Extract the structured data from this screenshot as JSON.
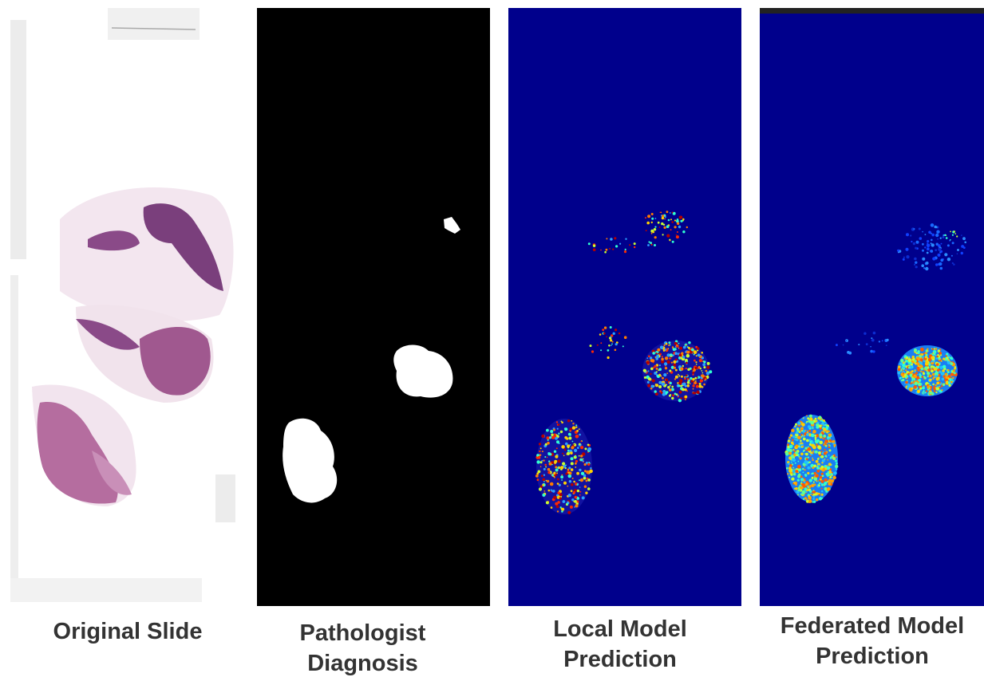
{
  "panels": [
    {
      "id": "original",
      "caption_lines": [
        "Original Slide"
      ]
    },
    {
      "id": "pathologist",
      "caption_lines": [
        "Pathologist",
        "Diagnosis"
      ]
    },
    {
      "id": "local",
      "caption_lines": [
        "Local Model",
        "Prediction"
      ]
    },
    {
      "id": "federated",
      "caption_lines": [
        "Federated Model",
        "Prediction"
      ]
    }
  ],
  "colors": {
    "heatmap_background": "#00008c",
    "tissue_dark": "#7a3f7c",
    "tissue_light": "#c98fb8",
    "mask_background": "#000000",
    "mask_foreground": "#ffffff"
  }
}
